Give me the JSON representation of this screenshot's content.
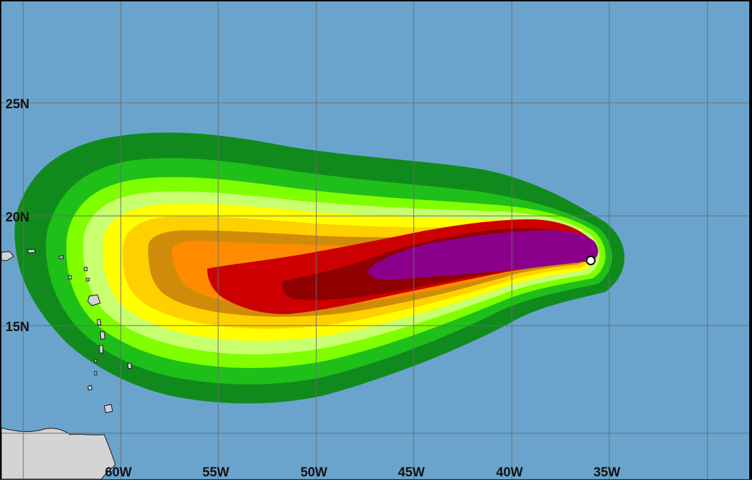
{
  "map": {
    "colors": {
      "ocean": "#6aa4cd",
      "land": "#d4d4d4",
      "grid": "#6b6b6b",
      "storm_center": "#ffffff"
    },
    "probability_band_colors": [
      "#118a1d",
      "#1fbf1a",
      "#7fff00",
      "#c8ff6e",
      "#ffff00",
      "#ffd000",
      "#d08c08",
      "#ff8c00",
      "#cc0000",
      "#900000",
      "#8b008b"
    ],
    "latitude_labels": [
      {
        "text": "25N",
        "lat": 25
      },
      {
        "text": "20N",
        "lat": 20
      },
      {
        "text": "15N",
        "lat": 15
      }
    ],
    "longitude_labels": [
      {
        "text": "60W",
        "lon": -60
      },
      {
        "text": "55W",
        "lon": -55
      },
      {
        "text": "50W",
        "lon": -50
      },
      {
        "text": "45W",
        "lon": -45
      },
      {
        "text": "40W",
        "lon": -40
      },
      {
        "text": "35W",
        "lon": -35
      }
    ],
    "storm_center": {
      "lat": 17.9,
      "lon": -36.2
    },
    "footer_caption": ""
  }
}
